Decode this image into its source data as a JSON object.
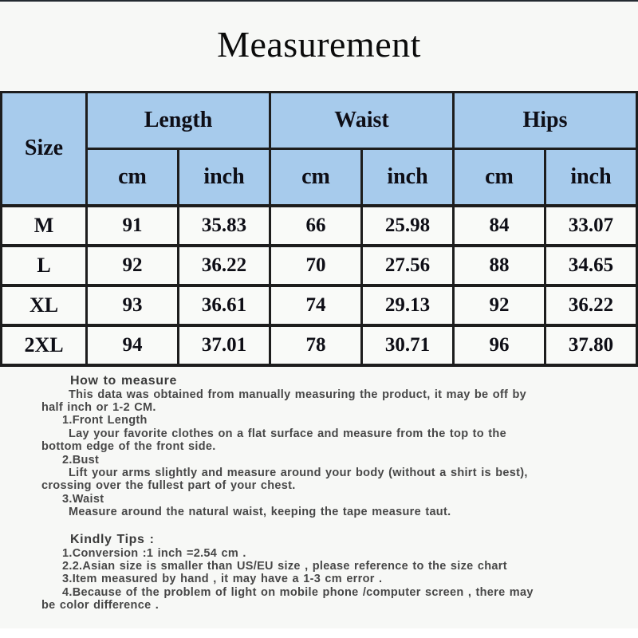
{
  "title": "Measurement",
  "size_chart": {
    "corner_header": "Size",
    "groups": [
      "Length",
      "Waist",
      "Hips"
    ],
    "unit_headers": [
      "cm",
      "inch",
      "cm",
      "inch",
      "cm",
      "inch"
    ],
    "rows": [
      {
        "size": "M",
        "values": [
          "91",
          "35.83",
          "66",
          "25.98",
          "84",
          "33.07"
        ]
      },
      {
        "size": "L",
        "values": [
          "92",
          "36.22",
          "70",
          "27.56",
          "88",
          "34.65"
        ]
      },
      {
        "size": "XL",
        "values": [
          "93",
          "36.61",
          "74",
          "29.13",
          "92",
          "36.22"
        ]
      },
      {
        "size": "2XL",
        "values": [
          "94",
          "37.01",
          "78",
          "30.71",
          "96",
          "37.80"
        ]
      }
    ]
  },
  "notes": {
    "how_to_measure": {
      "heading": "How to measure",
      "lines": [
        {
          "text": "This data was obtained from manually measuring the product, it may be off by",
          "indent": "first"
        },
        {
          "text": "half inch or 1-2 CM.",
          "indent": "wrap"
        },
        {
          "text": "1.Front Length",
          "indent": "item"
        },
        {
          "text": "Lay your favorite clothes on a flat surface and measure from the top to the",
          "indent": "first"
        },
        {
          "text": "bottom edge of the front side.",
          "indent": "wrap"
        },
        {
          "text": "2.Bust",
          "indent": "item"
        },
        {
          "text": "Lift your arms slightly and measure around your body (without a shirt is best),",
          "indent": "first"
        },
        {
          "text": "crossing over the fullest part of your chest.",
          "indent": "wrap"
        },
        {
          "text": "3.Waist",
          "indent": "item"
        },
        {
          "text": "Measure around the natural waist, keeping the tape measure taut.",
          "indent": "first"
        }
      ]
    },
    "kindly_tips": {
      "heading": "Kindly Tips :",
      "lines": [
        {
          "text": "1.Conversion :1 inch =2.54 cm .",
          "indent": "item"
        },
        {
          "text": "2.2.Asian size is smaller than US/EU size , please reference to the size chart",
          "indent": "item"
        },
        {
          "text": "3.Item measured by hand , it may have a 1-3 cm error .",
          "indent": "item"
        },
        {
          "text": "4.Because of the problem of light on mobile phone /computer screen , there may",
          "indent": "item"
        },
        {
          "text": "be  color difference .",
          "indent": "wrap"
        }
      ]
    }
  },
  "colors": {
    "page_bg": "#f7f8f6",
    "header_bg": "#a7cbec",
    "table_border": "#1d1d1d",
    "row_bg": "#f9faf8",
    "title_text": "#0b0b0b",
    "notes_text": "#474747"
  }
}
